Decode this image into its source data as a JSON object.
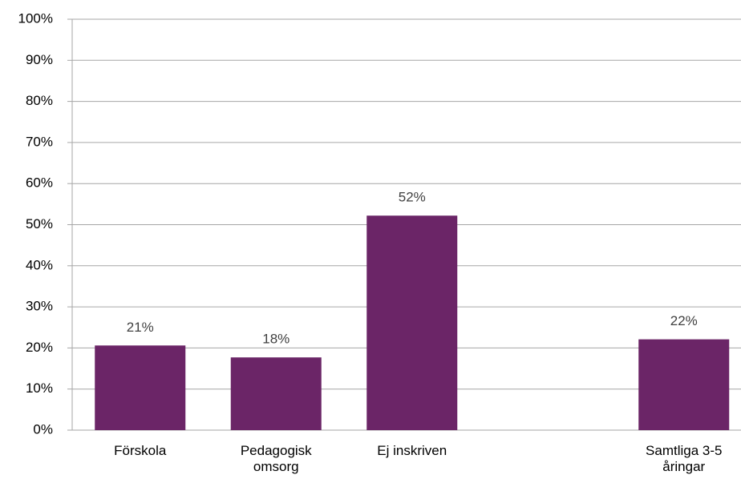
{
  "chart_data": {
    "type": "bar",
    "categories": [
      "Förskola",
      "Pedagogisk omsorg",
      "Ej inskriven",
      null,
      "Samtliga 3-5 åringar"
    ],
    "values": [
      20.6,
      17.7,
      52.2,
      null,
      22.1
    ],
    "value_labels": [
      "21%",
      "18%",
      "52%",
      null,
      "22%"
    ],
    "color": "#6b2567",
    "ylim": [
      0,
      100
    ],
    "yticks": [
      {
        "value": 0,
        "label": "0%"
      },
      {
        "value": 10,
        "label": "10%"
      },
      {
        "value": 20,
        "label": "20%"
      },
      {
        "value": 30,
        "label": "30%"
      },
      {
        "value": 40,
        "label": "40%"
      },
      {
        "value": 50,
        "label": "50%"
      },
      {
        "value": 60,
        "label": "60%"
      },
      {
        "value": 70,
        "label": "70%"
      },
      {
        "value": 80,
        "label": "80%"
      },
      {
        "value": 90,
        "label": "90%"
      },
      {
        "value": 100,
        "label": "100%"
      }
    ],
    "grid": true
  }
}
